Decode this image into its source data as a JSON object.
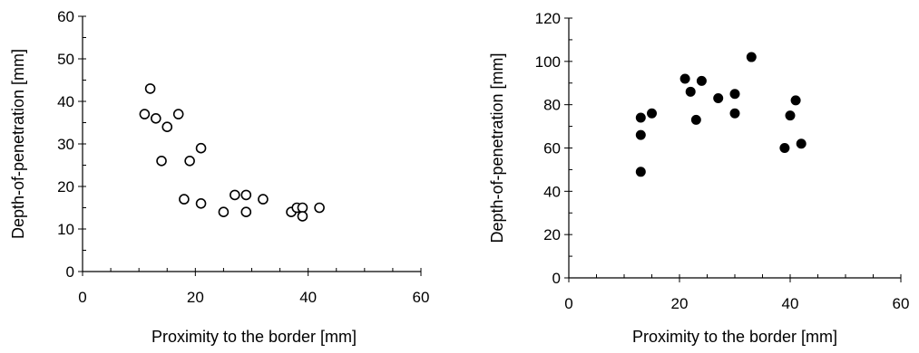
{
  "chart_data": [
    {
      "type": "scatter",
      "xlabel": "Proximity to the border [mm]",
      "ylabel": "Depth-of-penetration [mm]",
      "xlim": [
        0,
        60
      ],
      "ylim": [
        0,
        60
      ],
      "xticks": [
        0,
        20,
        40,
        60
      ],
      "yticks": [
        0,
        10,
        20,
        30,
        40,
        50,
        60
      ],
      "x_minor_step": 5,
      "y_minor_step": 5,
      "grid": false,
      "marker": "open-circle",
      "series": [
        {
          "x": [
            11,
            12,
            13,
            14,
            15,
            17,
            18,
            19,
            21,
            21,
            25,
            27,
            29,
            29,
            32,
            37,
            38,
            39,
            39,
            42
          ],
          "y": [
            37,
            43,
            36,
            26,
            34,
            37,
            17,
            26,
            29,
            16,
            14,
            18,
            18,
            14,
            17,
            14,
            15,
            15,
            13,
            15
          ]
        }
      ]
    },
    {
      "type": "scatter",
      "xlabel": "Proximity to the border [mm]",
      "ylabel": "Depth-of-penetration [mm]",
      "xlim": [
        0,
        60
      ],
      "ylim": [
        0,
        120
      ],
      "xticks": [
        0,
        20,
        40,
        60
      ],
      "yticks": [
        0,
        20,
        40,
        60,
        80,
        100,
        120
      ],
      "x_minor_step": 5,
      "y_minor_step": 10,
      "grid": false,
      "marker": "filled-circle",
      "series": [
        {
          "x": [
            13,
            13,
            13,
            15,
            21,
            22,
            23,
            24,
            27,
            30,
            30,
            33,
            39,
            40,
            41,
            42
          ],
          "y": [
            74,
            66,
            49,
            76,
            92,
            86,
            73,
            91,
            83,
            85,
            76,
            102,
            60,
            75,
            82,
            62
          ]
        }
      ]
    }
  ]
}
